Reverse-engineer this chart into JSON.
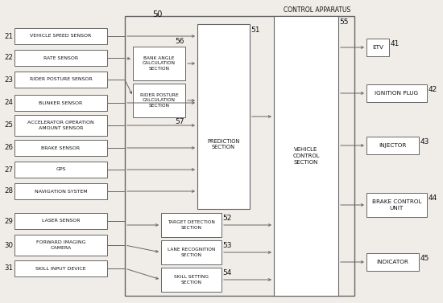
{
  "title": "CONTROL APPARATUS",
  "title_num": "50",
  "bg_color": "#f0ede8",
  "box_color": "#ffffff",
  "border_color": "#666666",
  "text_color": "#111111",
  "sensors": [
    {
      "id": "21",
      "label": "VEHICLE SPEED SENSOR",
      "two_line": false
    },
    {
      "id": "22",
      "label": "RATE SENSOR",
      "two_line": false
    },
    {
      "id": "23",
      "label": "RIDER POSTURE SENSOR",
      "two_line": false
    },
    {
      "id": "24",
      "label": "BLINKER SENSOR",
      "two_line": false
    },
    {
      "id": "25",
      "label": "ACCELERATOR OPERATION\nAMOUNT SENSOR",
      "two_line": true
    },
    {
      "id": "26",
      "label": "BRAKE SENSOR",
      "two_line": false
    },
    {
      "id": "27",
      "label": "GPS",
      "two_line": false
    },
    {
      "id": "28",
      "label": "NAVIGATION SYSTEM",
      "two_line": false
    },
    {
      "id": "29",
      "label": "LASER SENSOR",
      "two_line": false
    },
    {
      "id": "30",
      "label": "FORWARD IMAGING\nCAMERA",
      "two_line": true
    },
    {
      "id": "31",
      "label": "SKILL INPUT DEVICE",
      "two_line": false
    }
  ],
  "outputs": [
    {
      "id": "41",
      "label": "ETV"
    },
    {
      "id": "42",
      "label": "IGNITION PLUG"
    },
    {
      "id": "43",
      "label": "INJECTOR"
    },
    {
      "id": "44",
      "label": "BRAKE CONTROL\nUNIT"
    },
    {
      "id": "45",
      "label": "INDICATOR"
    }
  ],
  "bank_angle": {
    "id": "56",
    "label": "BANK ANGLE\nCALCULATION\nSECTION"
  },
  "rider_posture_calc": {
    "id": "57",
    "label": "RIDER POSTURE\nCALCULATION\nSECTION"
  },
  "target_detection": {
    "id": "52",
    "label": "TARGET DETECTION\nSECTION"
  },
  "lane_recognition": {
    "id": "53",
    "label": "LANE RECOGNITION\nSECTION"
  },
  "skill_setting": {
    "id": "54",
    "label": "SKILL SETTING\nSECTION"
  },
  "prediction_label": "PREDICTION\nSECTION",
  "prediction_id": "51",
  "vehicle_control_label": "VEHICLE\nCONTROL\nSECTION",
  "vehicle_control_id": "55"
}
